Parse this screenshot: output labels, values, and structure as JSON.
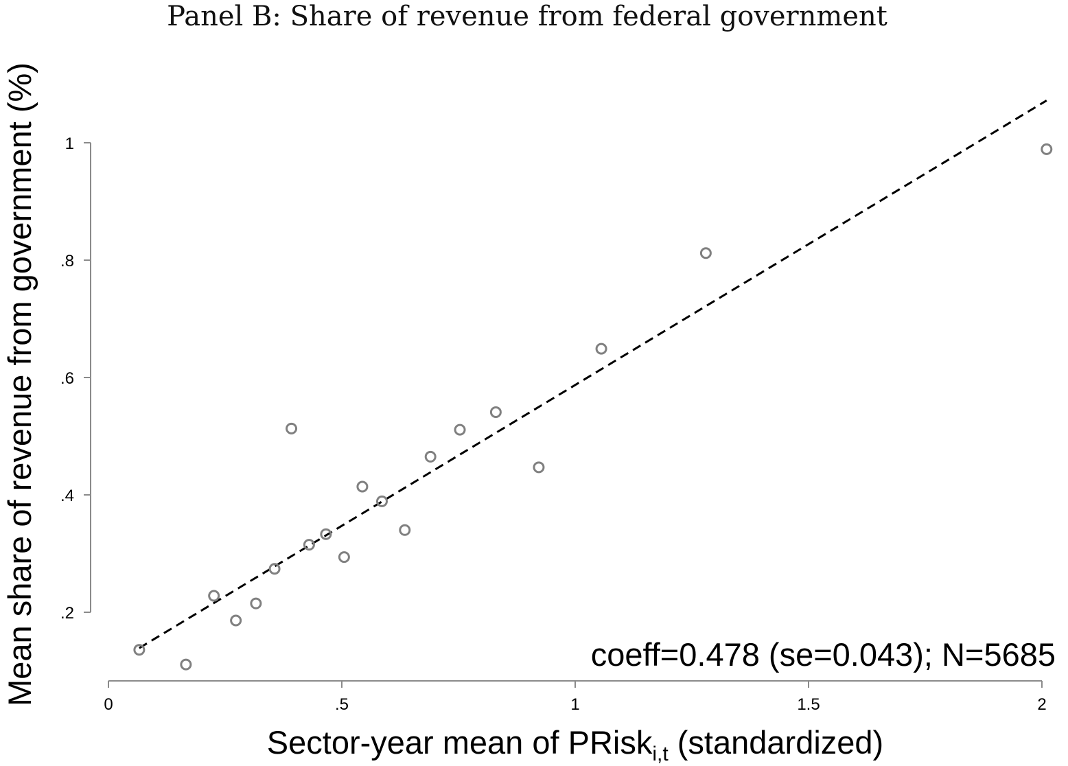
{
  "chart_data": {
    "type": "scatter",
    "title": "Panel B: Share of revenue from federal government",
    "xlabel": {
      "main": "Sector-year mean of PRisk",
      "subscript": "i,t",
      "suffix": " (standardized)"
    },
    "ylabel": "Mean share of revenue from government (%)",
    "xlim": [
      0,
      2
    ],
    "ylim": [
      0.2,
      1.0
    ],
    "x_ticks": [
      {
        "value": 0,
        "label": "0"
      },
      {
        "value": 0.5,
        "label": ".5"
      },
      {
        "value": 1,
        "label": "1"
      },
      {
        "value": 1.5,
        "label": "1.5"
      },
      {
        "value": 2,
        "label": "2"
      }
    ],
    "y_ticks": [
      {
        "value": 0.2,
        "label": ".2"
      },
      {
        "value": 0.4,
        "label": ".4"
      },
      {
        "value": 0.6,
        "label": ".6"
      },
      {
        "value": 0.8,
        "label": ".8"
      },
      {
        "value": 1.0,
        "label": "1"
      }
    ],
    "points": [
      {
        "x": 0.066,
        "y": 0.136
      },
      {
        "x": 0.166,
        "y": 0.111
      },
      {
        "x": 0.226,
        "y": 0.228
      },
      {
        "x": 0.273,
        "y": 0.186
      },
      {
        "x": 0.316,
        "y": 0.215
      },
      {
        "x": 0.356,
        "y": 0.274
      },
      {
        "x": 0.392,
        "y": 0.513
      },
      {
        "x": 0.43,
        "y": 0.315
      },
      {
        "x": 0.466,
        "y": 0.333
      },
      {
        "x": 0.505,
        "y": 0.294
      },
      {
        "x": 0.544,
        "y": 0.414
      },
      {
        "x": 0.586,
        "y": 0.389
      },
      {
        "x": 0.635,
        "y": 0.34
      },
      {
        "x": 0.69,
        "y": 0.465
      },
      {
        "x": 0.753,
        "y": 0.511
      },
      {
        "x": 0.83,
        "y": 0.541
      },
      {
        "x": 0.922,
        "y": 0.447
      },
      {
        "x": 1.056,
        "y": 0.649
      },
      {
        "x": 1.28,
        "y": 0.812
      },
      {
        "x": 2.01,
        "y": 0.989
      }
    ],
    "fit_line": {
      "style": "dashed",
      "x": [
        0.066,
        2.01
      ],
      "y": [
        0.139,
        1.072
      ]
    },
    "annotation": "coeff=0.478 (se=0.043); N=5685",
    "grid": false,
    "colors": {
      "points": "#808080",
      "fit": "#000000",
      "axes": "#8a8a8a"
    }
  }
}
